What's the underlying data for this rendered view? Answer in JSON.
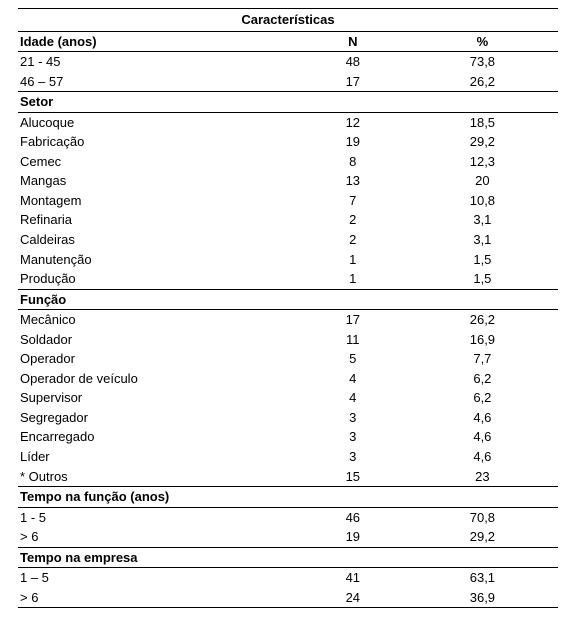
{
  "title": "Características",
  "columns": {
    "label": "Idade (anos)",
    "n": "N",
    "pct": "%"
  },
  "sections": [
    {
      "rows": [
        {
          "label": "21 - 45",
          "n": "48",
          "pct": "73,8"
        },
        {
          "label": "46 – 57",
          "n": "17",
          "pct": "26,2"
        }
      ]
    },
    {
      "header": "Setor",
      "rows": [
        {
          "label": "Alucoque",
          "n": "12",
          "pct": "18,5"
        },
        {
          "label": "Fabricação",
          "n": "19",
          "pct": "29,2"
        },
        {
          "label": "Cemec",
          "n": "8",
          "pct": "12,3"
        },
        {
          "label": "Mangas",
          "n": "13",
          "pct": "20"
        },
        {
          "label": "Montagem",
          "n": "7",
          "pct": "10,8"
        },
        {
          "label": "Refinaria",
          "n": "2",
          "pct": "3,1"
        },
        {
          "label": "Caldeiras",
          "n": "2",
          "pct": "3,1"
        },
        {
          "label": "Manutenção",
          "n": "1",
          "pct": "1,5"
        },
        {
          "label": "Produção",
          "n": "1",
          "pct": "1,5"
        }
      ]
    },
    {
      "header": "Função",
      "rows": [
        {
          "label": "Mecânico",
          "n": "17",
          "pct": "26,2"
        },
        {
          "label": "Soldador",
          "n": "11",
          "pct": "16,9"
        },
        {
          "label": "Operador",
          "n": "5",
          "pct": "7,7"
        },
        {
          "label": "Operador de veículo",
          "n": "4",
          "pct": "6,2"
        },
        {
          "label": "Supervisor",
          "n": "4",
          "pct": "6,2"
        },
        {
          "label": "Segregador",
          "n": "3",
          "pct": "4,6"
        },
        {
          "label": "Encarregado",
          "n": "3",
          "pct": "4,6"
        },
        {
          "label": "Líder",
          "n": "3",
          "pct": "4,6"
        },
        {
          "label": "* Outros",
          "n": "15",
          "pct": "23"
        }
      ]
    },
    {
      "header": "Tempo na função (anos)",
      "rows": [
        {
          "label": "1 - 5",
          "n": "46",
          "pct": "70,8"
        },
        {
          "label": "> 6",
          "n": "19",
          "pct": "29,2"
        }
      ]
    },
    {
      "header": "Tempo na empresa",
      "rows": [
        {
          "label": "1 – 5",
          "n": "41",
          "pct": "63,1"
        },
        {
          "label": "> 6",
          "n": "24",
          "pct": "36,9"
        }
      ]
    }
  ],
  "footnote": ""
}
